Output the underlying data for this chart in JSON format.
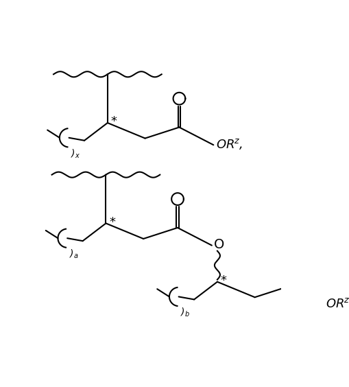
{
  "background_color": "#ffffff",
  "line_color": "#000000",
  "line_width": 1.5,
  "fig_width": 5.1,
  "fig_height": 5.64,
  "dpi": 100
}
